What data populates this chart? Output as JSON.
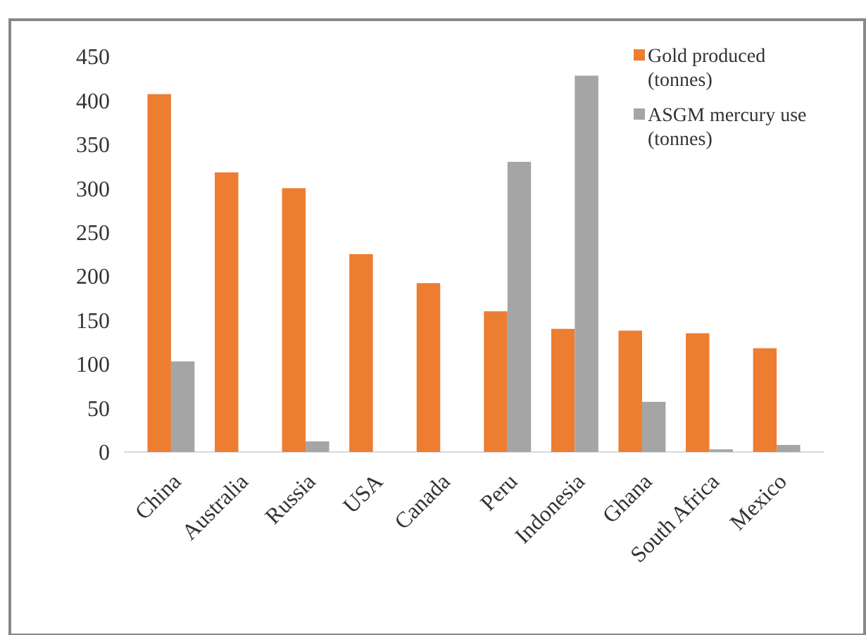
{
  "chart_data": {
    "type": "bar",
    "categories": [
      "China",
      "Australia",
      "Russia",
      "USA",
      "Canada",
      "Peru",
      "Indonesia",
      "Ghana",
      "South Africa",
      "Mexico"
    ],
    "series": [
      {
        "name": "Gold produced (tonnes)",
        "color": "#ed7d31",
        "values": [
          407,
          318,
          300,
          225,
          192,
          160,
          140,
          138,
          135,
          118
        ]
      },
      {
        "name": "ASGM mercury use (tonnes)",
        "color": "#a5a5a5",
        "values": [
          103,
          null,
          12,
          null,
          null,
          330,
          428,
          57,
          3,
          8
        ]
      }
    ],
    "ylim": [
      0,
      450
    ],
    "yticks": [
      0,
      50,
      100,
      150,
      200,
      250,
      300,
      350,
      400,
      450
    ],
    "grid": false,
    "legend": "top right"
  }
}
